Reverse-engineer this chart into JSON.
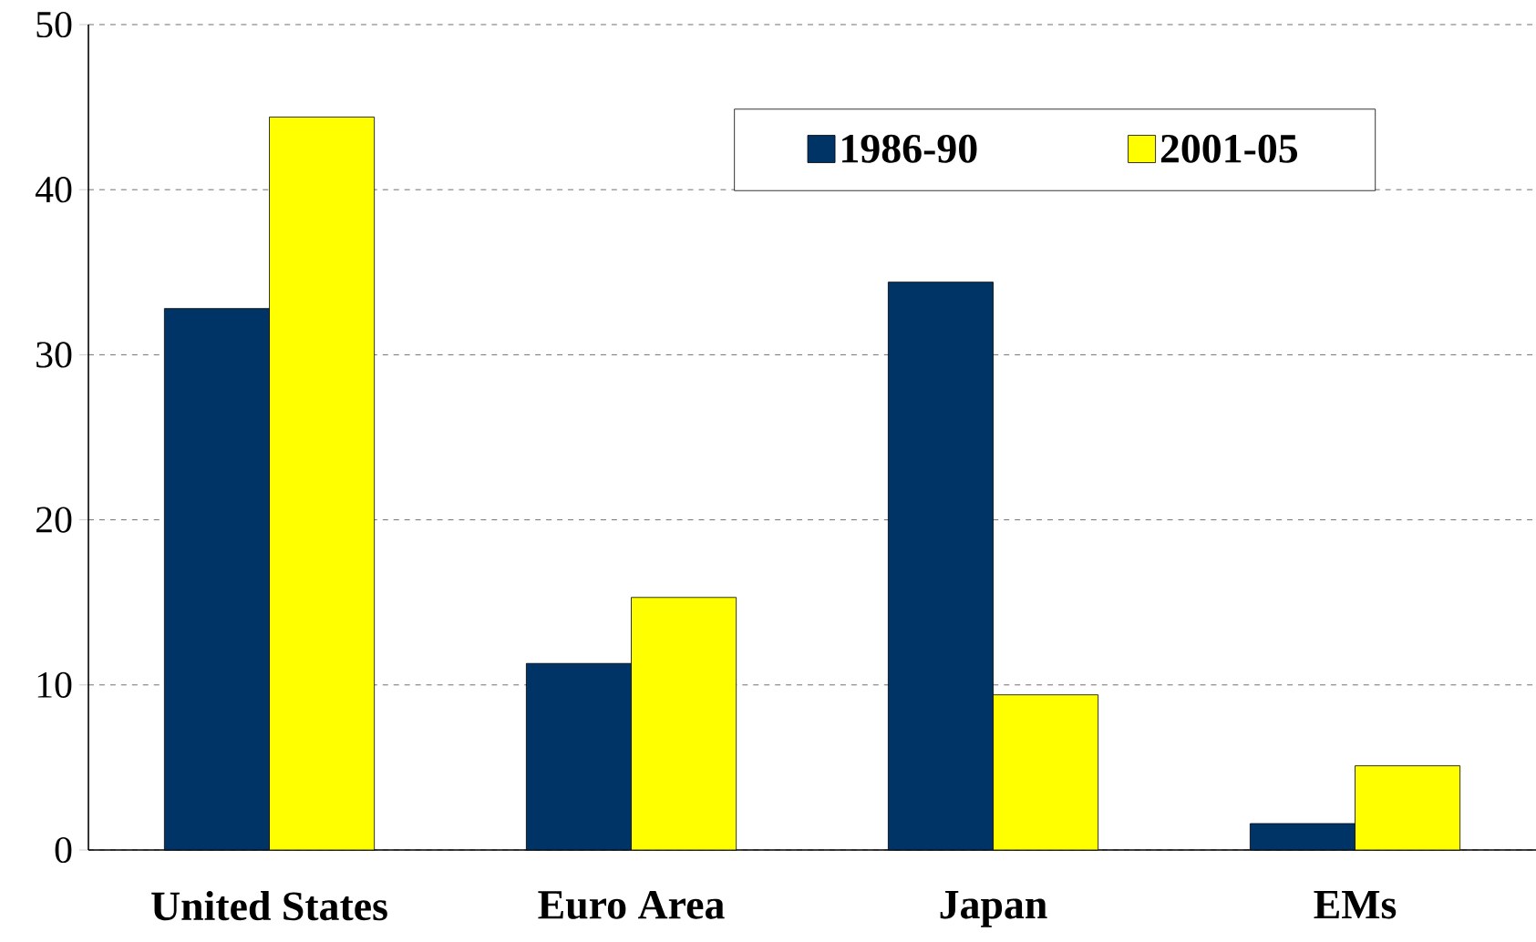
{
  "chart_data": {
    "type": "bar",
    "categories": [
      "United States",
      "Euro Area",
      "Japan",
      "EMs"
    ],
    "series": [
      {
        "name": "1986-90",
        "color": "#003366",
        "values": [
          32.8,
          11.3,
          34.4,
          1.6
        ]
      },
      {
        "name": "2001-05",
        "color": "#ffff00",
        "values": [
          44.4,
          15.3,
          9.4,
          5.1
        ]
      }
    ],
    "ylim": [
      0,
      50
    ],
    "yticks": [
      0,
      10,
      20,
      30,
      40,
      50
    ],
    "grid": "y",
    "legend": "top right"
  }
}
